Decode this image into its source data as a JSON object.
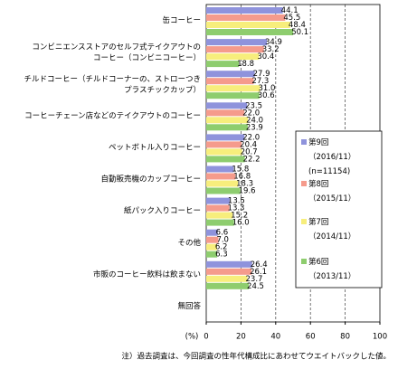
{
  "chart_data": {
    "type": "bar",
    "orientation": "horizontal",
    "categories": [
      "缶コーヒー",
      "コンビニエンスストアのセルフ式テイクアウトの\nコーヒー（コンビニコーヒー）",
      "チルドコーヒー（チルドコーナーの、ストローつき\nプラスチックカップ）",
      "コーヒーチェーン店などのテイクアウトのコーヒー",
      "ペットボトル入りコーヒー",
      "自動販売機のカップコーヒー",
      "紙パック入りコーヒー",
      "その他",
      "市販のコーヒー飲料は飲まない",
      "無回答"
    ],
    "series": [
      {
        "name": "第9回\n（2016/11）\n(n=11154)",
        "color": "#8f93dc",
        "values": [
          44.1,
          34.9,
          27.9,
          23.5,
          22.0,
          15.8,
          13.5,
          6.6,
          26.4,
          null
        ],
        "value_labels": [
          "44.1",
          "34.9",
          "27.9",
          "23.5",
          "22.0",
          "15.8",
          "13.5",
          "6.6",
          "26.4",
          null
        ]
      },
      {
        "name": "第8回\n（2015/11）",
        "color": "#f59b8c",
        "values": [
          45.5,
          33.2,
          27.3,
          22.0,
          20.4,
          16.8,
          13.3,
          7.0,
          26.1,
          null
        ],
        "value_labels": [
          "45.5",
          "33.2",
          "27.3",
          "22.0",
          "20.4",
          "16.8",
          "13.3",
          "7.0",
          "26.1",
          null
        ]
      },
      {
        "name": "第7回\n（2014/11）",
        "color": "#f7ee7c",
        "values": [
          48.4,
          30.4,
          31.0,
          24.0,
          20.7,
          18.3,
          15.2,
          6.2,
          23.7,
          null
        ],
        "value_labels": [
          "48.4",
          "30.4",
          "31.0",
          "24.0",
          "20.7",
          "18.3",
          "15.2",
          "6.2",
          "23.7",
          null
        ]
      },
      {
        "name": "第6回\n（2013/11）",
        "color": "#8ecd6e",
        "values": [
          50.1,
          18.8,
          30.6,
          23.9,
          22.2,
          19.6,
          16.0,
          6.3,
          24.5,
          null
        ],
        "value_labels": [
          "50.1",
          "18.8",
          "30.6",
          "23.9",
          "22.2",
          "19.6",
          "16.0",
          "6.3",
          "24.5",
          null
        ]
      }
    ],
    "xlim": [
      0,
      100
    ],
    "xticks": [
      0,
      20,
      40,
      60,
      80,
      100
    ],
    "x_unit_label": "(%)",
    "grid": true,
    "note": "注）過去調査は、今回調査の性年代構成比にあわせてウエイトバックした値。"
  }
}
